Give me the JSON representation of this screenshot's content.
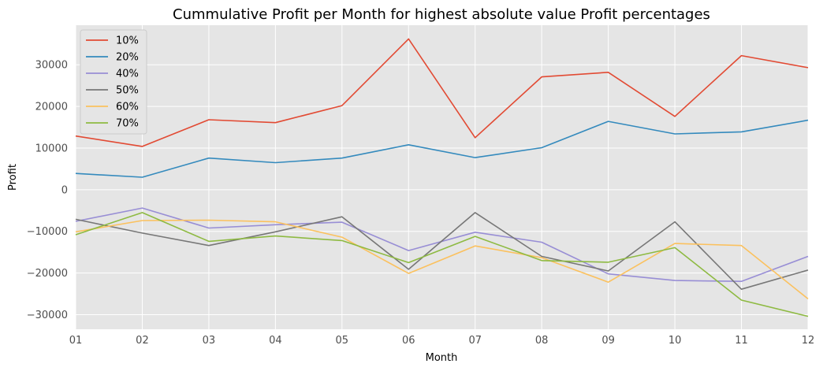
{
  "chart_data": {
    "type": "line",
    "title": "Cummulative Profit per Month for highest absolute value Profit percentages",
    "xlabel": "Month",
    "ylabel": "Profit",
    "categories": [
      "01",
      "02",
      "03",
      "04",
      "05",
      "06",
      "07",
      "08",
      "09",
      "10",
      "11",
      "12"
    ],
    "ylim": [
      -33500,
      39500
    ],
    "yticks": [
      -30000,
      -20000,
      -10000,
      0,
      10000,
      20000,
      30000
    ],
    "ytick_labels": [
      "−30000",
      "−20000",
      "−10000",
      "0",
      "10000",
      "20000",
      "30000"
    ],
    "grid": true,
    "legend_position": "top-left",
    "style": "ggplot",
    "series": [
      {
        "name": "10%",
        "color": "#e24a33",
        "values": [
          12900,
          10400,
          16800,
          16100,
          20200,
          36200,
          12500,
          27100,
          28200,
          17600,
          32200,
          29300
        ]
      },
      {
        "name": "20%",
        "color": "#348abd",
        "values": [
          3900,
          3000,
          7600,
          6500,
          7600,
          10800,
          7700,
          10100,
          16400,
          13400,
          13900,
          16700
        ]
      },
      {
        "name": "40%",
        "color": "#988ed5",
        "values": [
          -7600,
          -4400,
          -9200,
          -8400,
          -7800,
          -14600,
          -10200,
          -12600,
          -20200,
          -21800,
          -22000,
          -16000
        ]
      },
      {
        "name": "50%",
        "color": "#777777",
        "values": [
          -7100,
          -10400,
          -13400,
          -10100,
          -6500,
          -19100,
          -5500,
          -16000,
          -19500,
          -7700,
          -23900,
          -19300
        ]
      },
      {
        "name": "60%",
        "color": "#fbc15e",
        "values": [
          -10100,
          -7400,
          -7300,
          -7700,
          -11400,
          -20100,
          -13500,
          -16300,
          -22200,
          -12900,
          -13400,
          -26200
        ]
      },
      {
        "name": "70%",
        "color": "#8eba42",
        "values": [
          -10800,
          -5500,
          -12400,
          -11100,
          -12200,
          -17500,
          -11200,
          -17000,
          -17400,
          -13900,
          -26500,
          -30400
        ]
      }
    ]
  }
}
